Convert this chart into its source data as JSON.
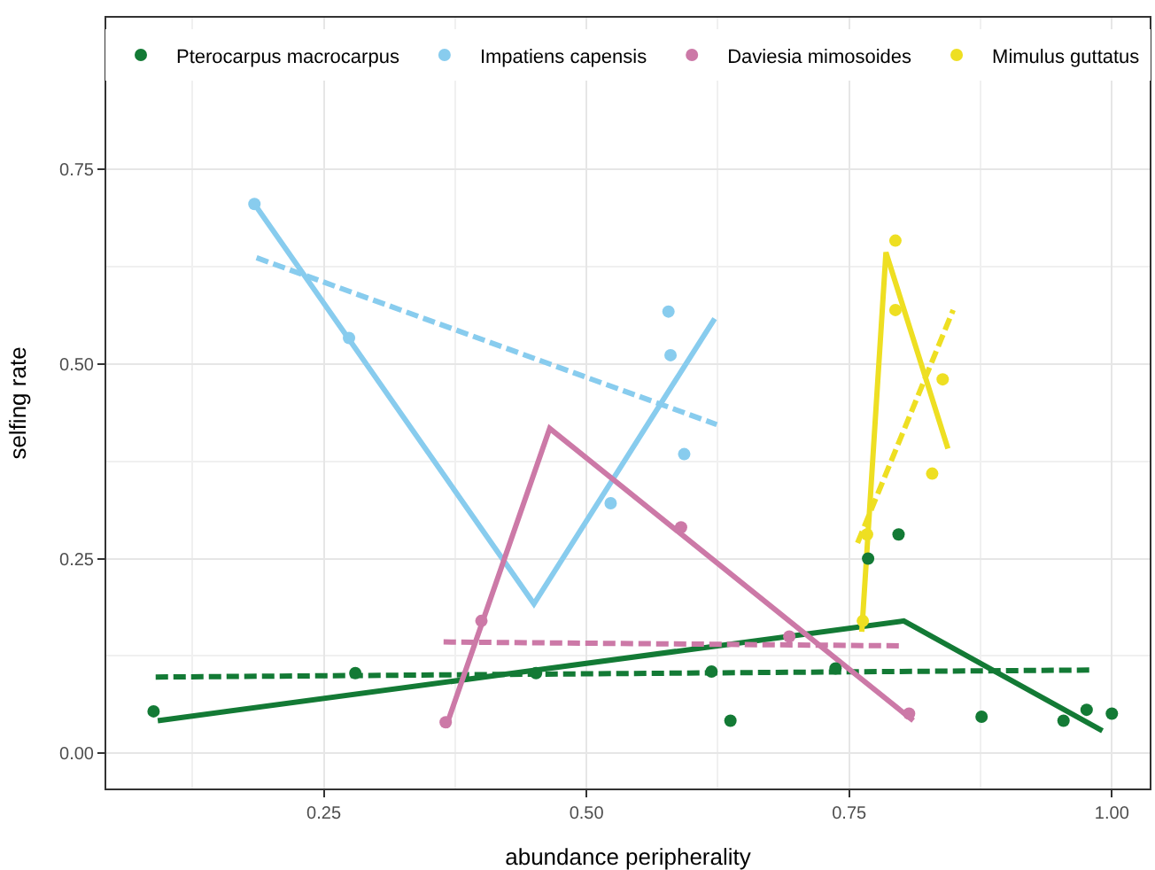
{
  "chart_data": {
    "type": "scatter",
    "xlabel": "abundance peripherality",
    "ylabel": "selfing rate",
    "xlim": [
      0.043,
      1.036
    ],
    "ylim": [
      -0.045,
      0.944
    ],
    "xticks": [
      {
        "value": 0.25,
        "label": "0.25"
      },
      {
        "value": 0.5,
        "label": "0.50"
      },
      {
        "value": 0.75,
        "label": "0.75"
      },
      {
        "value": 1.0,
        "label": "1.00"
      }
    ],
    "yticks": [
      {
        "value": 0.0,
        "label": "0.00"
      },
      {
        "value": 0.25,
        "label": "0.25"
      },
      {
        "value": 0.5,
        "label": "0.50"
      },
      {
        "value": 0.75,
        "label": "0.75"
      }
    ],
    "grid": true,
    "legend": "top",
    "series": [
      {
        "name": "Pterocarpus macrocarpus",
        "marker": "circle",
        "color": "#137a35",
        "x": [
          0.088,
          0.28,
          0.452,
          0.619,
          0.637,
          0.737,
          0.768,
          0.797,
          0.876,
          0.954,
          0.976,
          1.0
        ],
        "values": [
          0.054,
          0.103,
          0.103,
          0.105,
          0.042,
          0.109,
          0.25,
          0.281,
          0.047,
          0.042,
          0.056,
          0.051
        ]
      },
      {
        "type": "line",
        "line_style": "solid",
        "color": "#137a35",
        "x": [
          0.092,
          0.802,
          0.991
        ],
        "values": [
          0.042,
          0.17,
          0.029
        ]
      },
      {
        "type": "line",
        "line_style": "dashed",
        "color": "#137a35",
        "x": [
          0.09,
          0.979
        ],
        "values": [
          0.098,
          0.107
        ]
      },
      {
        "name": "Impatiens capensis",
        "marker": "circle",
        "color": "#88ccee",
        "x": [
          0.184,
          0.274,
          0.523,
          0.578,
          0.58,
          0.593
        ],
        "values": [
          0.705,
          0.533,
          0.321,
          0.567,
          0.511,
          0.384
        ]
      },
      {
        "type": "line",
        "line_style": "solid",
        "color": "#88ccee",
        "x": [
          0.184,
          0.45,
          0.622
        ],
        "values": [
          0.705,
          0.192,
          0.558
        ]
      },
      {
        "type": "line",
        "line_style": "dashed",
        "color": "#88ccee",
        "x": [
          0.186,
          0.624
        ],
        "values": [
          0.636,
          0.422
        ]
      },
      {
        "name": "Daviesia mimosoides",
        "marker": "circle",
        "color": "#cc79a7",
        "x": [
          0.366,
          0.4,
          0.59,
          0.693,
          0.807
        ],
        "values": [
          0.04,
          0.17,
          0.29,
          0.15,
          0.051
        ]
      },
      {
        "type": "line",
        "line_style": "solid",
        "color": "#cc79a7",
        "x": [
          0.366,
          0.465,
          0.811
        ],
        "values": [
          0.033,
          0.417,
          0.042
        ]
      },
      {
        "type": "line",
        "line_style": "dashed",
        "color": "#cc79a7",
        "x": [
          0.364,
          0.8
        ],
        "values": [
          0.143,
          0.138
        ]
      },
      {
        "name": "Mimulus guttatus",
        "marker": "circle",
        "color": "#eedf22",
        "x": [
          0.763,
          0.767,
          0.794,
          0.794,
          0.829,
          0.839
        ],
        "values": [
          0.17,
          0.281,
          0.658,
          0.569,
          0.359,
          0.48
        ]
      },
      {
        "type": "line",
        "line_style": "solid",
        "color": "#eedf22",
        "x": [
          0.762,
          0.785,
          0.844
        ],
        "values": [
          0.156,
          0.643,
          0.391
        ]
      },
      {
        "type": "line",
        "line_style": "dashed",
        "color": "#eedf22",
        "x": [
          0.758,
          0.849
        ],
        "values": [
          0.27,
          0.569
        ]
      }
    ]
  }
}
